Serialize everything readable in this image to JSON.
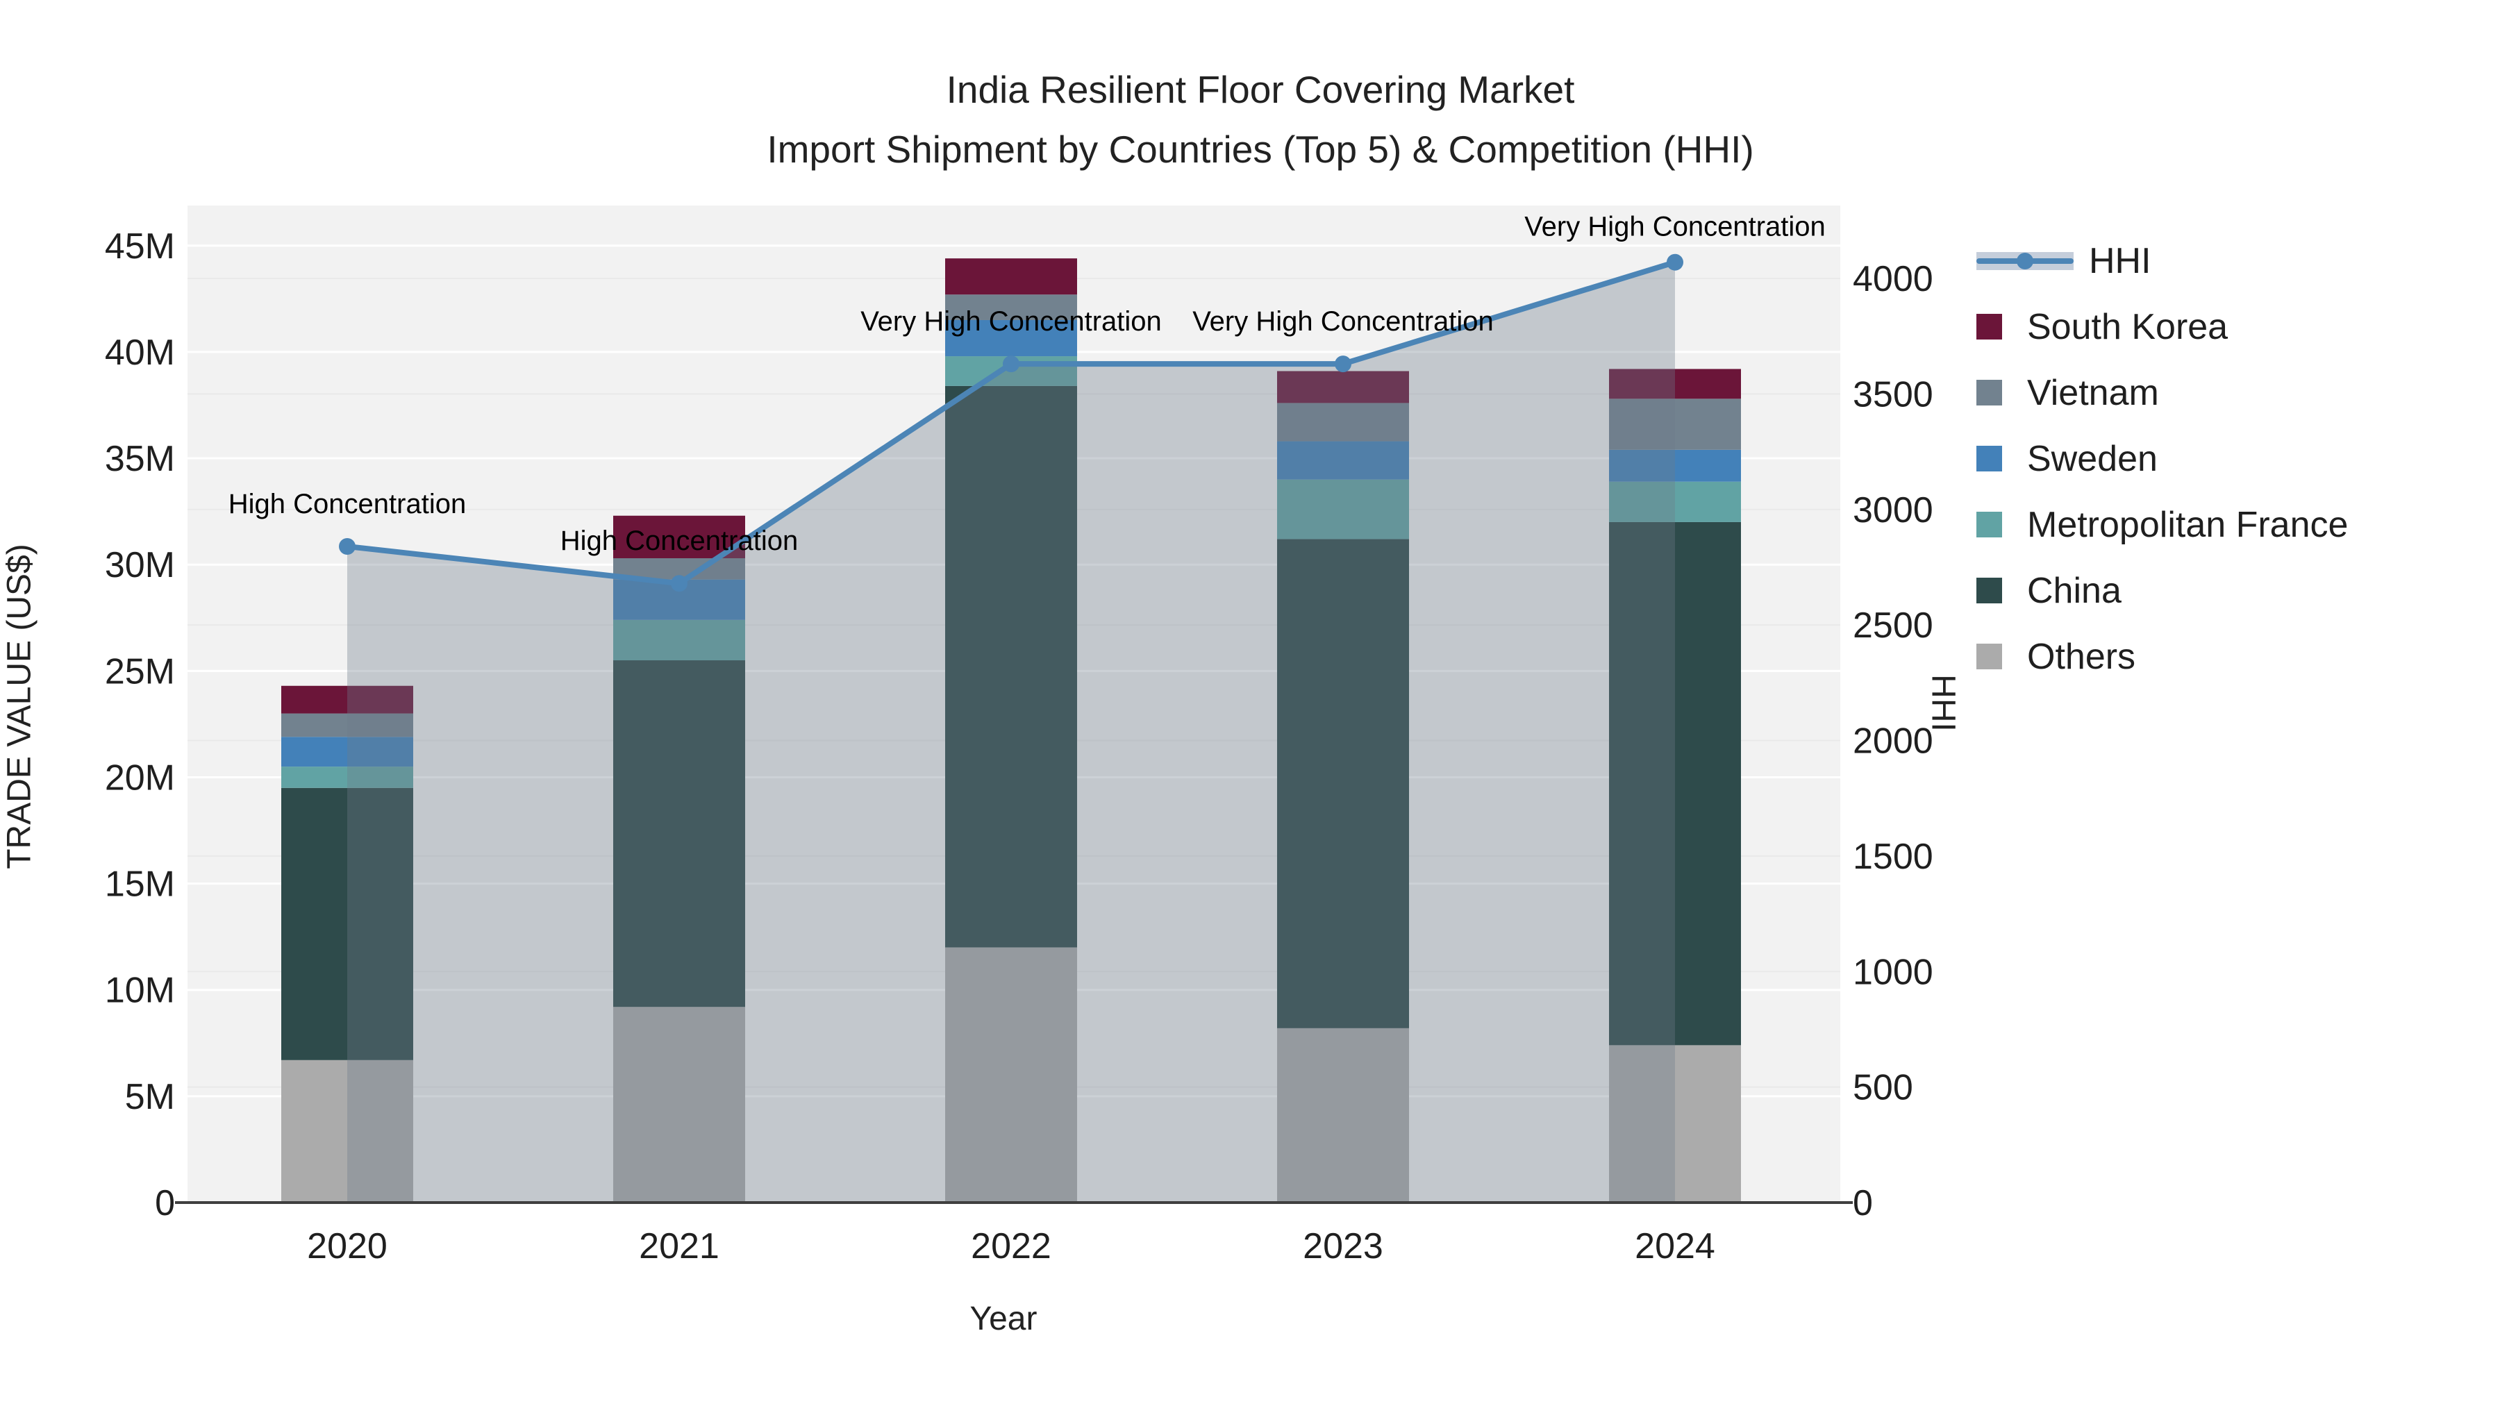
{
  "title": {
    "line1": "India Resilient Floor Covering Market",
    "line2": "Import Shipment by Countries (Top 5) & Competition (HHI)"
  },
  "axes": {
    "x_title": "Year",
    "y_left_title": "TRADE VALUE (US$)",
    "y_right_title": "HHI",
    "y_left_ticks": [
      "0",
      "5M",
      "10M",
      "15M",
      "20M",
      "25M",
      "30M",
      "35M",
      "40M",
      "45M"
    ],
    "y_right_ticks": [
      "0",
      "500",
      "1000",
      "1500",
      "2000",
      "2500",
      "3000",
      "3500",
      "4000"
    ]
  },
  "legend": [
    {
      "label": "HHI",
      "type": "line",
      "color": "#4c85b6"
    },
    {
      "label": "South Korea",
      "type": "swatch",
      "color": "#6b1539"
    },
    {
      "label": "Vietnam",
      "type": "swatch",
      "color": "#72828f"
    },
    {
      "label": "Sweden",
      "type": "swatch",
      "color": "#4381b9"
    },
    {
      "label": "Metropolitan France",
      "type": "swatch",
      "color": "#61a3a4"
    },
    {
      "label": "China",
      "type": "swatch",
      "color": "#2e4b4b"
    },
    {
      "label": "Others",
      "type": "swatch",
      "color": "#ababab"
    }
  ],
  "chart_data": {
    "type": "bar",
    "subtype": "stacked-bars-with-line-overlay",
    "title": "India Resilient Floor Covering Market — Import Shipment by Countries (Top 5) & Competition (HHI)",
    "xlabel": "Year",
    "ylabel_left": "TRADE VALUE (US$)",
    "ylabel_right": "HHI",
    "ylim_left_millions": [
      0,
      47
    ],
    "ylim_right": [
      0,
      4300
    ],
    "grid": true,
    "legend_position": "right",
    "categories": [
      "2020",
      "2021",
      "2022",
      "2023",
      "2024"
    ],
    "series": [
      {
        "name": "Others",
        "color": "#ababab",
        "values_millions": [
          6.7,
          9.2,
          12.0,
          8.2,
          7.4
        ]
      },
      {
        "name": "China",
        "color": "#2e4b4b",
        "values_millions": [
          12.8,
          16.3,
          26.4,
          23.0,
          24.6
        ]
      },
      {
        "name": "Metropolitan France",
        "color": "#61a3a4",
        "values_millions": [
          1.0,
          1.9,
          1.4,
          2.8,
          1.9
        ]
      },
      {
        "name": "Sweden",
        "color": "#4381b9",
        "values_millions": [
          1.4,
          1.9,
          1.7,
          1.8,
          1.5
        ]
      },
      {
        "name": "Vietnam",
        "color": "#72828f",
        "values_millions": [
          1.1,
          1.0,
          1.2,
          1.8,
          2.4
        ]
      },
      {
        "name": "South Korea",
        "color": "#6b1539",
        "values_millions": [
          1.3,
          2.0,
          1.7,
          1.5,
          1.4
        ]
      }
    ],
    "bar_totals_millions": [
      24.3,
      32.3,
      44.4,
      39.1,
      39.2
    ],
    "hhi_line": {
      "name": "HHI",
      "color": "#4c85b6",
      "area_fill": "rgba(108,122,137,0.35)",
      "values": [
        2840,
        2680,
        3630,
        3630,
        4070
      ]
    },
    "annotations": [
      {
        "year": "2020",
        "text": "High Concentration"
      },
      {
        "year": "2021",
        "text": "High Concentration"
      },
      {
        "year": "2022",
        "text": "Very High Concentration"
      },
      {
        "year": "2023",
        "text": "Very High Concentration"
      },
      {
        "year": "2024",
        "text": "Very High Concentration"
      }
    ],
    "colors": {
      "plot_background": "#f2f2f2",
      "grid_major": "#ffffff",
      "grid_minor": "#e9e9e9",
      "axis_line": "#3f3f3f",
      "text": "#1f1f1f"
    }
  }
}
